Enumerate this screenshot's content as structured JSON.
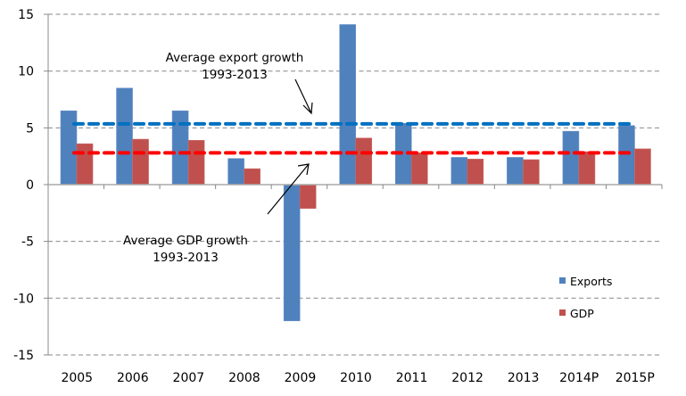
{
  "chart_data": {
    "type": "bar",
    "title": "",
    "xlabel": "",
    "ylabel": "",
    "ylim": [
      -15,
      15
    ],
    "yticks": [
      -15,
      -10,
      -5,
      0,
      5,
      10,
      15
    ],
    "grid": true,
    "categories": [
      "2005",
      "2006",
      "2007",
      "2008",
      "2009",
      "2010",
      "2011",
      "2012",
      "2013",
      "2014P",
      "2015P"
    ],
    "series": [
      {
        "name": "Exports",
        "color": "#4F81BD",
        "values": [
          6.5,
          8.5,
          6.5,
          2.3,
          -12.0,
          14.1,
          5.4,
          2.4,
          2.4,
          4.7,
          5.2
        ]
      },
      {
        "name": "GDP",
        "color": "#C0504D",
        "values": [
          3.6,
          4.0,
          3.9,
          1.4,
          -2.1,
          4.1,
          2.8,
          2.25,
          2.2,
          2.9,
          3.15
        ]
      }
    ],
    "reference_lines": [
      {
        "name": "Average export growth 1993-2013",
        "value": 5.35,
        "color": "#0070C0"
      },
      {
        "name": "Average GDP growth 1993-2013",
        "value": 2.8,
        "color": "#FF0000"
      }
    ],
    "annotations": [
      {
        "id": "export-avg",
        "lines": [
          "Average export growth",
          "1993-2013"
        ]
      },
      {
        "id": "gdp-avg",
        "lines": [
          "Average GDP growth",
          "1993-2013"
        ]
      }
    ],
    "legend": {
      "placement": "bottom-right",
      "entries": [
        "Exports",
        "GDP"
      ]
    }
  }
}
